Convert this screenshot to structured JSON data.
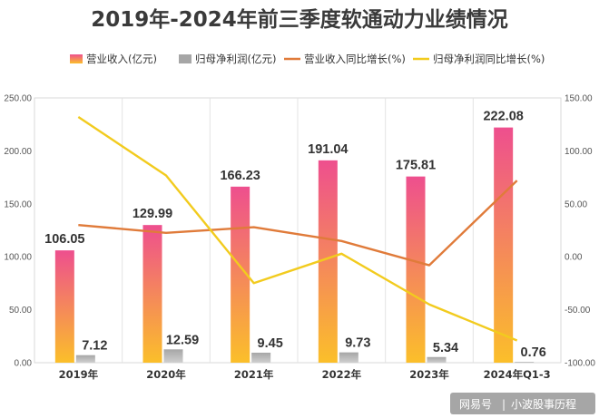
{
  "chart_data": {
    "type": "bar",
    "title": "2019年-2024年前三季度软通动力业绩情况",
    "categories": [
      "2019年",
      "2020年",
      "2021年",
      "2022年",
      "2023年",
      "2024年Q1-3"
    ],
    "series": [
      {
        "name": "营业收入(亿元)",
        "type": "bar",
        "axis": "left",
        "color": "#ee4f8e",
        "values": [
          106.05,
          129.99,
          166.23,
          191.04,
          175.81,
          222.08
        ]
      },
      {
        "name": "归母净利润(亿元)",
        "type": "bar",
        "axis": "left",
        "color": "#a6a6a6",
        "values": [
          7.12,
          12.59,
          9.45,
          9.73,
          5.34,
          0.76
        ]
      },
      {
        "name": "营业收入同比增长(%)",
        "type": "line",
        "axis": "right",
        "color": "#e07b3a",
        "values": [
          30,
          22.6,
          27.9,
          14.9,
          -8,
          72
        ]
      },
      {
        "name": "归母净利润同比增长(%)",
        "type": "line",
        "axis": "right",
        "color": "#f2cb1e",
        "values": [
          132,
          76.8,
          -24.9,
          2.9,
          -45,
          -79
        ]
      }
    ],
    "y_left": {
      "ylim": [
        0,
        250
      ],
      "ticks": [
        "0.00",
        "50.00",
        "100.00",
        "150.00",
        "200.00",
        "250.00"
      ]
    },
    "y_right": {
      "ylim": [
        -100,
        150
      ],
      "ticks": [
        "-100.00",
        "-50.00",
        "0.00",
        "50.00",
        "100.00",
        "150.00"
      ]
    },
    "grid": "vertical",
    "legend_position": "top"
  },
  "watermark": {
    "brand": "网易号",
    "author": "小波股事历程"
  }
}
